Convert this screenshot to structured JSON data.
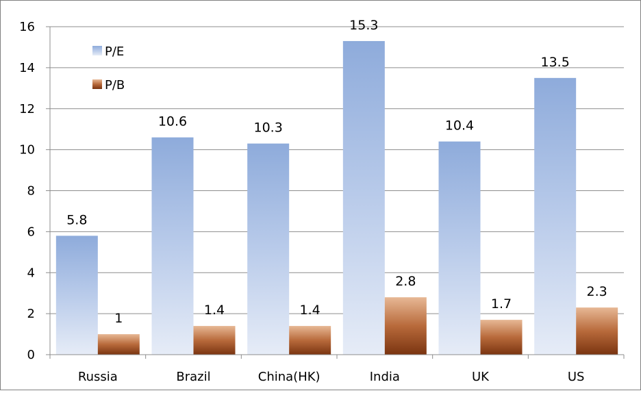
{
  "chart_data": {
    "type": "bar",
    "categories": [
      "Russia",
      "Brazil",
      "China(HK)",
      "India",
      "UK",
      "US"
    ],
    "series": [
      {
        "name": "P/E",
        "values": [
          5.8,
          10.6,
          10.3,
          15.3,
          10.4,
          13.5
        ],
        "labels": [
          "5.8",
          "10.6",
          "10.3",
          "15.3",
          "10.4",
          "13.5"
        ],
        "color": "#95b3d7"
      },
      {
        "name": "P/B",
        "values": [
          1,
          1.4,
          1.4,
          2.8,
          1.7,
          2.3
        ],
        "labels": [
          "1",
          "1.4",
          "1.4",
          "2.8",
          "1.7",
          "2.3"
        ],
        "color": "#8b3a0f"
      }
    ],
    "yticks": [
      "0",
      "2",
      "4",
      "6",
      "8",
      "10",
      "12",
      "14",
      "16"
    ],
    "ylim": [
      0,
      16
    ],
    "grid": true,
    "legend_position": "top-left"
  }
}
